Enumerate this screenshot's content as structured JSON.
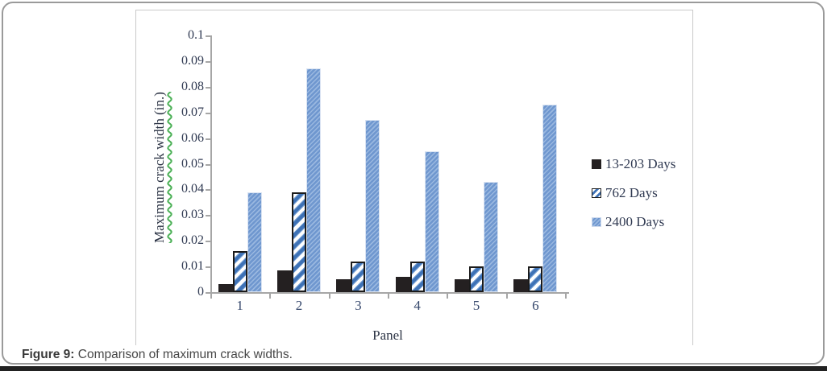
{
  "figure": {
    "caption_label": "Figure 9:",
    "caption_text": " Comparison of maximum crack widths."
  },
  "chart_data": {
    "type": "bar",
    "title": "",
    "xlabel": "Panel",
    "ylabel": "Maximum crack width (in.)",
    "ylim": [
      0,
      0.1
    ],
    "ytick_step": 0.01,
    "ytick_labels": [
      "0.1",
      "0.09",
      "0.08",
      "0.07",
      "0.06",
      "0.05",
      "0.04",
      "0.03",
      "0.02",
      "0.01",
      "0"
    ],
    "categories": [
      "1",
      "2",
      "3",
      "4",
      "5",
      "6"
    ],
    "series": [
      {
        "name": "13-203 Days",
        "style": "solid-black",
        "color": "#242021",
        "values": [
          0.003,
          0.0085,
          0.005,
          0.006,
          0.005,
          0.005
        ]
      },
      {
        "name": "762 Days",
        "style": "wide-diagonal-stripe",
        "color": "#3e72b6",
        "values": [
          0.016,
          0.039,
          0.012,
          0.012,
          0.01,
          0.01
        ]
      },
      {
        "name": "2400 Days",
        "style": "fine-diagonal-stripe",
        "color": "#7ba1d7",
        "values": [
          0.039,
          0.087,
          0.067,
          0.055,
          0.043,
          0.073
        ]
      }
    ],
    "legend_position": "right",
    "grid": false,
    "axis_color": "#a6a6a6",
    "ylabel_underline_color": "#4db158"
  }
}
